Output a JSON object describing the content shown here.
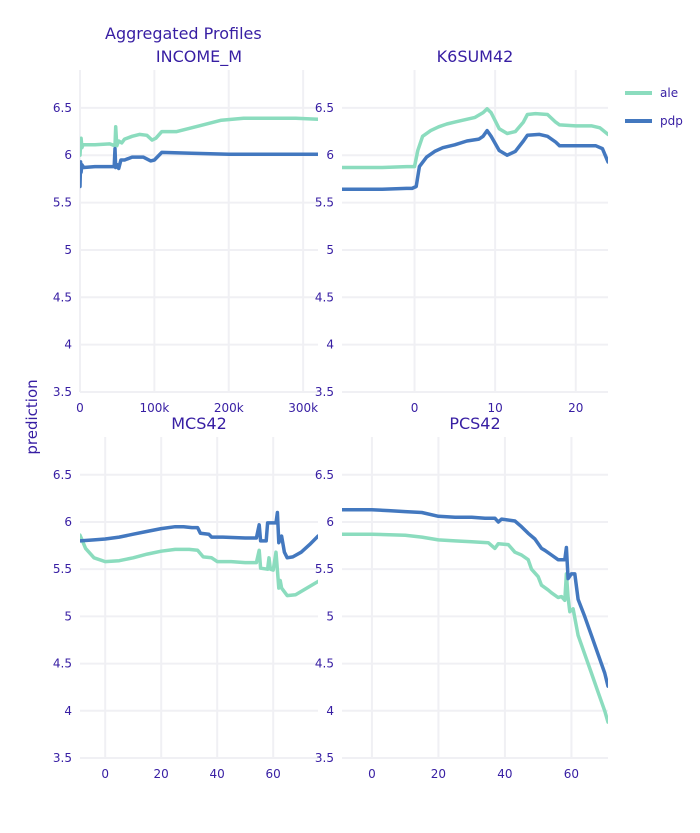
{
  "title": "Aggregated Profiles",
  "y_axis_label": "prediction",
  "colors": {
    "ale": "#8bdcbe",
    "pdp": "#4378bf",
    "text": "#371ea3",
    "grid": "#f0f0f4"
  },
  "legend": {
    "placement": "top-right",
    "entries": [
      "ale",
      "pdp"
    ]
  },
  "chart_data": [
    {
      "type": "line",
      "title": "INCOME_M",
      "xlim": [
        0,
        320000
      ],
      "ylim": [
        3.5,
        6.9
      ],
      "x_ticks": [
        0,
        100000,
        200000,
        300000
      ],
      "x_tick_labels": [
        "0",
        "100k",
        "200k",
        "300k"
      ],
      "y_ticks": [
        3.5,
        4,
        4.5,
        5,
        5.5,
        6,
        6.5
      ],
      "y_tick_labels": [
        "3.5",
        "4",
        "4.5",
        "5",
        "5.5",
        "6",
        "6.5"
      ],
      "grid": true,
      "series": [
        {
          "name": "ale",
          "points": [
            [
              0,
              6.0
            ],
            [
              800,
              6.12
            ],
            [
              1500,
              6.18
            ],
            [
              2500,
              6.08
            ],
            [
              4000,
              6.11
            ],
            [
              20000,
              6.11
            ],
            [
              40000,
              6.12
            ],
            [
              47000,
              6.1
            ],
            [
              48000,
              6.3
            ],
            [
              49500,
              6.1
            ],
            [
              52000,
              6.15
            ],
            [
              56000,
              6.13
            ],
            [
              60000,
              6.17
            ],
            [
              70000,
              6.2
            ],
            [
              80000,
              6.22
            ],
            [
              90000,
              6.21
            ],
            [
              97000,
              6.16
            ],
            [
              102000,
              6.18
            ],
            [
              110000,
              6.25
            ],
            [
              130000,
              6.25
            ],
            [
              160000,
              6.31
            ],
            [
              190000,
              6.37
            ],
            [
              220000,
              6.39
            ],
            [
              260000,
              6.39
            ],
            [
              290000,
              6.39
            ],
            [
              320000,
              6.38
            ]
          ]
        },
        {
          "name": "pdp",
          "points": [
            [
              0,
              5.67
            ],
            [
              800,
              5.93
            ],
            [
              1500,
              5.82
            ],
            [
              2500,
              5.9
            ],
            [
              5000,
              5.87
            ],
            [
              20000,
              5.88
            ],
            [
              40000,
              5.88
            ],
            [
              46000,
              5.88
            ],
            [
              47000,
              6.07
            ],
            [
              48000,
              5.87
            ],
            [
              50000,
              5.9
            ],
            [
              52000,
              5.86
            ],
            [
              55000,
              5.95
            ],
            [
              60000,
              5.95
            ],
            [
              70000,
              5.98
            ],
            [
              85000,
              5.98
            ],
            [
              95000,
              5.94
            ],
            [
              100000,
              5.95
            ],
            [
              110000,
              6.03
            ],
            [
              150000,
              6.02
            ],
            [
              200000,
              6.01
            ],
            [
              260000,
              6.01
            ],
            [
              320000,
              6.01
            ]
          ]
        }
      ]
    },
    {
      "type": "line",
      "title": "K6SUM42",
      "xlim": [
        -9,
        24
      ],
      "ylim": [
        3.5,
        6.9
      ],
      "x_ticks": [
        0,
        10,
        20
      ],
      "x_tick_labels": [
        "0",
        "10",
        "20"
      ],
      "y_ticks": [
        3.5,
        4,
        4.5,
        5,
        5.5,
        6,
        6.5
      ],
      "y_tick_labels": [
        "3.5",
        "4",
        "4.5",
        "5",
        "5.5",
        "6",
        "6.5"
      ],
      "grid": true,
      "series": [
        {
          "name": "ale",
          "points": [
            [
              -9,
              5.87
            ],
            [
              -4,
              5.87
            ],
            [
              -1,
              5.88
            ],
            [
              0,
              5.88
            ],
            [
              0.4,
              6.05
            ],
            [
              1,
              6.2
            ],
            [
              2,
              6.26
            ],
            [
              3,
              6.3
            ],
            [
              4,
              6.33
            ],
            [
              5,
              6.35
            ],
            [
              6,
              6.37
            ],
            [
              7.5,
              6.4
            ],
            [
              8.5,
              6.45
            ],
            [
              9,
              6.49
            ],
            [
              9.5,
              6.45
            ],
            [
              10.5,
              6.28
            ],
            [
              11.5,
              6.23
            ],
            [
              12.5,
              6.25
            ],
            [
              13.5,
              6.35
            ],
            [
              14,
              6.43
            ],
            [
              15,
              6.44
            ],
            [
              16.5,
              6.43
            ],
            [
              17.5,
              6.35
            ],
            [
              18,
              6.32
            ],
            [
              20,
              6.31
            ],
            [
              22,
              6.31
            ],
            [
              23,
              6.29
            ],
            [
              24,
              6.22
            ]
          ]
        },
        {
          "name": "pdp",
          "points": [
            [
              -9,
              5.64
            ],
            [
              -4,
              5.64
            ],
            [
              -1,
              5.65
            ],
            [
              -0.3,
              5.65
            ],
            [
              0.2,
              5.67
            ],
            [
              0.6,
              5.88
            ],
            [
              1.5,
              5.98
            ],
            [
              2.5,
              6.04
            ],
            [
              3.5,
              6.08
            ],
            [
              5,
              6.11
            ],
            [
              6.5,
              6.15
            ],
            [
              8,
              6.17
            ],
            [
              8.5,
              6.2
            ],
            [
              9,
              6.26
            ],
            [
              9.5,
              6.2
            ],
            [
              10.5,
              6.05
            ],
            [
              11.5,
              6.0
            ],
            [
              12.5,
              6.04
            ],
            [
              13.5,
              6.15
            ],
            [
              14,
              6.21
            ],
            [
              15.5,
              6.22
            ],
            [
              16.5,
              6.2
            ],
            [
              17.5,
              6.14
            ],
            [
              18,
              6.1
            ],
            [
              20,
              6.1
            ],
            [
              22.5,
              6.1
            ],
            [
              23.3,
              6.07
            ],
            [
              24,
              5.93
            ]
          ]
        }
      ]
    },
    {
      "type": "line",
      "title": "MCS42",
      "xlim": [
        -9,
        76
      ],
      "ylim": [
        3.5,
        6.9
      ],
      "x_ticks": [
        0,
        20,
        40,
        60
      ],
      "x_tick_labels": [
        "0",
        "20",
        "40",
        "60"
      ],
      "y_ticks": [
        3.5,
        4,
        4.5,
        5,
        5.5,
        6,
        6.5
      ],
      "y_tick_labels": [
        "3.5",
        "4",
        "4.5",
        "5",
        "5.5",
        "6",
        "6.5"
      ],
      "grid": true,
      "series": [
        {
          "name": "ale",
          "points": [
            [
              -9,
              5.86
            ],
            [
              -7,
              5.72
            ],
            [
              -4,
              5.62
            ],
            [
              0,
              5.58
            ],
            [
              5,
              5.59
            ],
            [
              10,
              5.62
            ],
            [
              15,
              5.66
            ],
            [
              20,
              5.69
            ],
            [
              25,
              5.71
            ],
            [
              30,
              5.71
            ],
            [
              33,
              5.7
            ],
            [
              35,
              5.63
            ],
            [
              38,
              5.62
            ],
            [
              40,
              5.58
            ],
            [
              45,
              5.58
            ],
            [
              50,
              5.57
            ],
            [
              54,
              5.57
            ],
            [
              55,
              5.7
            ],
            [
              55.5,
              5.51
            ],
            [
              58,
              5.5
            ],
            [
              58.5,
              5.62
            ],
            [
              59,
              5.5
            ],
            [
              60,
              5.49
            ],
            [
              61,
              5.68
            ],
            [
              62,
              5.3
            ],
            [
              62.5,
              5.38
            ],
            [
              63,
              5.3
            ],
            [
              65,
              5.22
            ],
            [
              68,
              5.23
            ],
            [
              72,
              5.3
            ],
            [
              76,
              5.37
            ]
          ]
        },
        {
          "name": "pdp",
          "points": [
            [
              -9,
              5.8
            ],
            [
              -4,
              5.81
            ],
            [
              0,
              5.82
            ],
            [
              5,
              5.84
            ],
            [
              10,
              5.87
            ],
            [
              15,
              5.9
            ],
            [
              20,
              5.93
            ],
            [
              25,
              5.95
            ],
            [
              28,
              5.95
            ],
            [
              31,
              5.94
            ],
            [
              33,
              5.94
            ],
            [
              34,
              5.88
            ],
            [
              37,
              5.87
            ],
            [
              38,
              5.84
            ],
            [
              42,
              5.84
            ],
            [
              50,
              5.83
            ],
            [
              54,
              5.83
            ],
            [
              55,
              5.97
            ],
            [
              55.5,
              5.8
            ],
            [
              57.5,
              5.8
            ],
            [
              58,
              5.99
            ],
            [
              61,
              5.99
            ],
            [
              61.5,
              6.1
            ],
            [
              62,
              5.78
            ],
            [
              63,
              5.85
            ],
            [
              64,
              5.68
            ],
            [
              65,
              5.62
            ],
            [
              67,
              5.63
            ],
            [
              70,
              5.68
            ],
            [
              73,
              5.76
            ],
            [
              76,
              5.85
            ]
          ]
        }
      ]
    },
    {
      "type": "line",
      "title": "PCS42",
      "xlim": [
        -9,
        71
      ],
      "ylim": [
        3.5,
        6.9
      ],
      "x_ticks": [
        0,
        20,
        40,
        60
      ],
      "x_tick_labels": [
        "0",
        "20",
        "40",
        "60"
      ],
      "y_ticks": [
        3.5,
        4,
        4.5,
        5,
        5.5,
        6,
        6.5
      ],
      "y_tick_labels": [
        "3.5",
        "4",
        "4.5",
        "5",
        "5.5",
        "6",
        "6.5"
      ],
      "grid": true,
      "series": [
        {
          "name": "ale",
          "points": [
            [
              -9,
              5.87
            ],
            [
              0,
              5.87
            ],
            [
              10,
              5.86
            ],
            [
              15,
              5.84
            ],
            [
              20,
              5.81
            ],
            [
              25,
              5.8
            ],
            [
              30,
              5.79
            ],
            [
              35,
              5.78
            ],
            [
              37,
              5.72
            ],
            [
              38,
              5.77
            ],
            [
              41,
              5.76
            ],
            [
              43,
              5.68
            ],
            [
              45,
              5.65
            ],
            [
              47,
              5.6
            ],
            [
              48,
              5.5
            ],
            [
              50,
              5.42
            ],
            [
              51,
              5.33
            ],
            [
              53,
              5.28
            ],
            [
              54,
              5.25
            ],
            [
              56,
              5.2
            ],
            [
              57,
              5.21
            ],
            [
              58,
              5.17
            ],
            [
              58.5,
              5.45
            ],
            [
              59,
              5.2
            ],
            [
              59.5,
              5.05
            ],
            [
              60.5,
              5.08
            ],
            [
              62,
              4.8
            ],
            [
              64,
              4.6
            ],
            [
              66,
              4.4
            ],
            [
              68,
              4.2
            ],
            [
              70,
              4.0
            ],
            [
              71,
              3.88
            ]
          ]
        },
        {
          "name": "pdp",
          "points": [
            [
              -9,
              6.13
            ],
            [
              0,
              6.13
            ],
            [
              5,
              6.12
            ],
            [
              10,
              6.11
            ],
            [
              15,
              6.1
            ],
            [
              20,
              6.06
            ],
            [
              25,
              6.05
            ],
            [
              30,
              6.05
            ],
            [
              34,
              6.04
            ],
            [
              37,
              6.04
            ],
            [
              38,
              6.0
            ],
            [
              39,
              6.03
            ],
            [
              43,
              6.01
            ],
            [
              45,
              5.95
            ],
            [
              47,
              5.88
            ],
            [
              49,
              5.82
            ],
            [
              51,
              5.72
            ],
            [
              52,
              5.7
            ],
            [
              54,
              5.65
            ],
            [
              56,
              5.6
            ],
            [
              58,
              5.6
            ],
            [
              58.5,
              5.73
            ],
            [
              59,
              5.4
            ],
            [
              60,
              5.45
            ],
            [
              61,
              5.45
            ],
            [
              62,
              5.18
            ],
            [
              64,
              5.0
            ],
            [
              66,
              4.8
            ],
            [
              68,
              4.6
            ],
            [
              70,
              4.4
            ],
            [
              71,
              4.26
            ]
          ]
        }
      ]
    }
  ]
}
